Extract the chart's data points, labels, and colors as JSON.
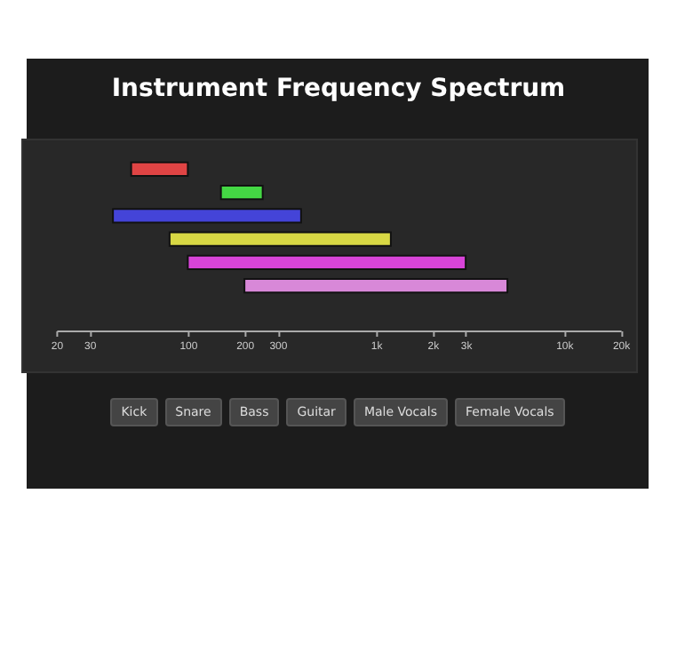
{
  "chart_data": {
    "type": "bar",
    "title": "Instrument Frequency Spectrum",
    "orientation": "horizontal",
    "categories": [
      null,
      null,
      null,
      null,
      null,
      null
    ],
    "annotations": [
      "Kick",
      "Snare",
      "Bass",
      "Guitar",
      "Male Vocals",
      "Female Vocals"
    ],
    "base": [
      50,
      150,
      40,
      80,
      100,
      200
    ],
    "values": [
      50,
      100,
      360,
      1120,
      2900,
      4800
    ],
    "colors": [
      "#e04444",
      "#44d844",
      "#4444d8",
      "#d8d844",
      "#d844d8",
      "#d888d8"
    ],
    "log": "x",
    "xlim": [
      20,
      20000
    ],
    "xticks": [
      20,
      30,
      100,
      200,
      300,
      {
        "value": 1000,
        "label": "1k"
      },
      {
        "value": 2000,
        "label": "2k"
      },
      {
        "value": 3000,
        "label": "3k"
      },
      {
        "value": 10000,
        "label": "10k"
      },
      {
        "value": 20000,
        "label": "20k"
      }
    ],
    "tick_labels": "x"
  }
}
